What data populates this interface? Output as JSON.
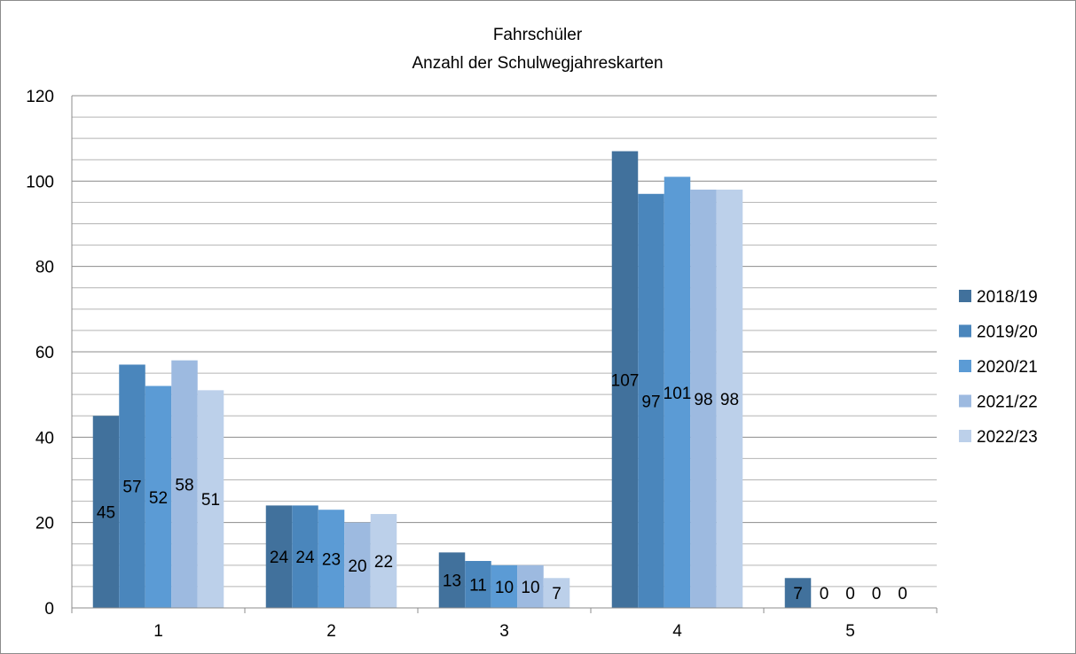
{
  "chart_data": {
    "type": "bar",
    "title": [
      "Fahrschüler",
      "Anzahl der Schulwegjahreskarten"
    ],
    "xlabel": "",
    "ylabel": "",
    "categories": [
      "1",
      "2",
      "3",
      "4",
      "5"
    ],
    "series": [
      {
        "name": "2018/19",
        "values": [
          45,
          24,
          13,
          107,
          7
        ],
        "color": "#41719C"
      },
      {
        "name": "2019/20",
        "values": [
          57,
          24,
          11,
          97,
          0
        ],
        "color": "#4A86BC"
      },
      {
        "name": "2020/21",
        "values": [
          52,
          23,
          10,
          101,
          0
        ],
        "color": "#5B9BD5"
      },
      {
        "name": "2021/22",
        "values": [
          58,
          20,
          10,
          98,
          0
        ],
        "color": "#9DBAE0"
      },
      {
        "name": "2022/23",
        "values": [
          51,
          22,
          7,
          98,
          0
        ],
        "color": "#BCD0EA"
      }
    ],
    "ylim": [
      0,
      120
    ],
    "yticks": [
      0,
      20,
      40,
      60,
      80,
      100,
      120
    ],
    "grid": true,
    "legend_position": "right"
  }
}
